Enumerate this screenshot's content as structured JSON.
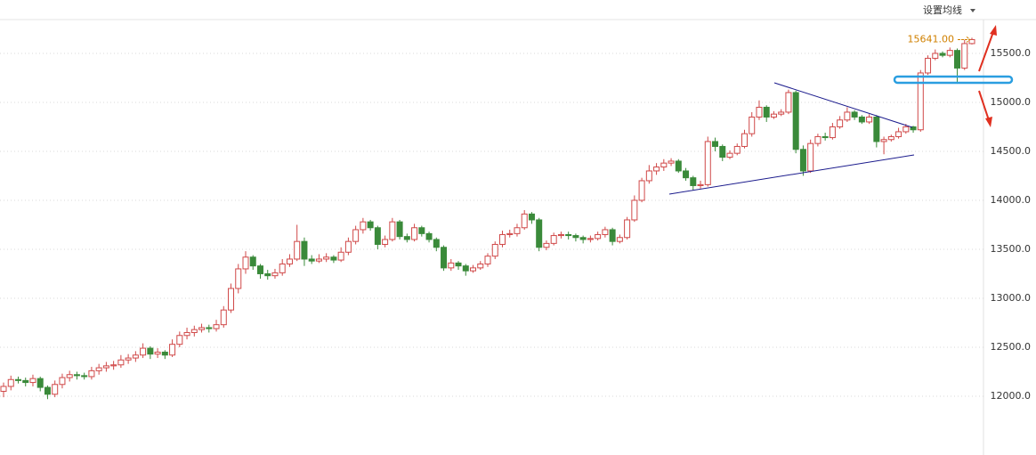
{
  "chart_data": {
    "type": "candlestick",
    "button": "设置均线",
    "ylim": [
      11427,
      15845
    ],
    "yticks": [
      {
        "value": 12000,
        "label": "12000.0"
      },
      {
        "value": 12500,
        "label": "12500.0"
      },
      {
        "value": 13000,
        "label": "13000.0"
      },
      {
        "value": 13500,
        "label": "13500.0"
      },
      {
        "value": 14000,
        "label": "14000.0"
      },
      {
        "value": 14500,
        "label": "14500.0"
      },
      {
        "value": 15000,
        "label": "15000.0"
      },
      {
        "value": 15500,
        "label": "15500.0"
      }
    ],
    "grid": true,
    "annotation": {
      "value": 15641,
      "label": "15641.00",
      "color": "#d08000"
    },
    "series": [
      {
        "up_color": "#d04848",
        "down_color": "#3a8a3a",
        "values": [
          [
            12050,
            12140,
            11990,
            12100
          ],
          [
            12100,
            12210,
            12060,
            12170
          ],
          [
            12170,
            12200,
            12130,
            12160
          ],
          [
            12160,
            12190,
            12100,
            12140
          ],
          [
            12140,
            12220,
            12100,
            12180
          ],
          [
            12180,
            12200,
            12050,
            12090
          ],
          [
            12090,
            12110,
            11970,
            12020
          ],
          [
            12020,
            12160,
            11990,
            12120
          ],
          [
            12120,
            12230,
            12080,
            12190
          ],
          [
            12190,
            12260,
            12150,
            12220
          ],
          [
            12220,
            12250,
            12170,
            12210
          ],
          [
            12210,
            12240,
            12170,
            12200
          ],
          [
            12200,
            12300,
            12170,
            12260
          ],
          [
            12260,
            12330,
            12220,
            12290
          ],
          [
            12290,
            12350,
            12250,
            12310
          ],
          [
            12310,
            12360,
            12270,
            12320
          ],
          [
            12320,
            12420,
            12290,
            12370
          ],
          [
            12370,
            12430,
            12330,
            12390
          ],
          [
            12390,
            12460,
            12350,
            12420
          ],
          [
            12420,
            12540,
            12390,
            12490
          ],
          [
            12490,
            12510,
            12380,
            12430
          ],
          [
            12430,
            12490,
            12390,
            12450
          ],
          [
            12450,
            12470,
            12380,
            12420
          ],
          [
            12420,
            12580,
            12400,
            12530
          ],
          [
            12530,
            12660,
            12500,
            12620
          ],
          [
            12620,
            12700,
            12580,
            12650
          ],
          [
            12650,
            12720,
            12610,
            12680
          ],
          [
            12680,
            12740,
            12650,
            12700
          ],
          [
            12700,
            12730,
            12650,
            12690
          ],
          [
            12690,
            12780,
            12660,
            12730
          ],
          [
            12730,
            12920,
            12700,
            12880
          ],
          [
            12880,
            13150,
            12850,
            13100
          ],
          [
            13100,
            13350,
            13050,
            13300
          ],
          [
            13300,
            13480,
            13250,
            13420
          ],
          [
            13420,
            13440,
            13290,
            13330
          ],
          [
            13330,
            13350,
            13200,
            13250
          ],
          [
            13250,
            13290,
            13190,
            13230
          ],
          [
            13230,
            13300,
            13200,
            13260
          ],
          [
            13260,
            13400,
            13230,
            13350
          ],
          [
            13350,
            13450,
            13320,
            13400
          ],
          [
            13400,
            13750,
            13380,
            13580
          ],
          [
            13580,
            13620,
            13330,
            13400
          ],
          [
            13400,
            13440,
            13350,
            13380
          ],
          [
            13380,
            13450,
            13360,
            13400
          ],
          [
            13400,
            13460,
            13370,
            13420
          ],
          [
            13420,
            13440,
            13360,
            13390
          ],
          [
            13390,
            13520,
            13370,
            13470
          ],
          [
            13470,
            13620,
            13440,
            13580
          ],
          [
            13580,
            13740,
            13550,
            13700
          ],
          [
            13700,
            13820,
            13660,
            13780
          ],
          [
            13780,
            13800,
            13690,
            13720
          ],
          [
            13720,
            13740,
            13500,
            13550
          ],
          [
            13550,
            13640,
            13520,
            13600
          ],
          [
            13600,
            13820,
            13580,
            13780
          ],
          [
            13780,
            13800,
            13600,
            13630
          ],
          [
            13630,
            13660,
            13570,
            13600
          ],
          [
            13600,
            13760,
            13580,
            13720
          ],
          [
            13720,
            13740,
            13630,
            13660
          ],
          [
            13660,
            13680,
            13570,
            13600
          ],
          [
            13600,
            13620,
            13480,
            13520
          ],
          [
            13520,
            13540,
            13280,
            13310
          ],
          [
            13310,
            13400,
            13280,
            13360
          ],
          [
            13360,
            13380,
            13290,
            13330
          ],
          [
            13330,
            13350,
            13230,
            13280
          ],
          [
            13280,
            13340,
            13260,
            13310
          ],
          [
            13310,
            13380,
            13290,
            13350
          ],
          [
            13350,
            13460,
            13320,
            13430
          ],
          [
            13430,
            13580,
            13400,
            13550
          ],
          [
            13550,
            13690,
            13520,
            13650
          ],
          [
            13650,
            13700,
            13620,
            13660
          ],
          [
            13660,
            13760,
            13630,
            13720
          ],
          [
            13720,
            13900,
            13700,
            13860
          ],
          [
            13860,
            13880,
            13760,
            13800
          ],
          [
            13800,
            13820,
            13480,
            13520
          ],
          [
            13520,
            13590,
            13490,
            13560
          ],
          [
            13560,
            13670,
            13540,
            13640
          ],
          [
            13640,
            13680,
            13610,
            13650
          ],
          [
            13650,
            13680,
            13600,
            13640
          ],
          [
            13640,
            13660,
            13580,
            13620
          ],
          [
            13620,
            13640,
            13560,
            13600
          ],
          [
            13600,
            13640,
            13570,
            13610
          ],
          [
            13610,
            13680,
            13590,
            13650
          ],
          [
            13650,
            13730,
            13620,
            13700
          ],
          [
            13700,
            13720,
            13540,
            13580
          ],
          [
            13580,
            13650,
            13560,
            13620
          ],
          [
            13620,
            13830,
            13600,
            13800
          ],
          [
            13800,
            14050,
            13780,
            14000
          ],
          [
            14000,
            14230,
            13980,
            14200
          ],
          [
            14200,
            14360,
            14170,
            14300
          ],
          [
            14300,
            14380,
            14260,
            14340
          ],
          [
            14340,
            14420,
            14300,
            14380
          ],
          [
            14380,
            14430,
            14350,
            14400
          ],
          [
            14400,
            14420,
            14280,
            14300
          ],
          [
            14300,
            14330,
            14200,
            14230
          ],
          [
            14230,
            14250,
            14100,
            14150
          ],
          [
            14150,
            14200,
            14120,
            14160
          ],
          [
            14160,
            14650,
            14140,
            14600
          ],
          [
            14600,
            14640,
            14500,
            14550
          ],
          [
            14550,
            14570,
            14400,
            14440
          ],
          [
            14440,
            14510,
            14420,
            14480
          ],
          [
            14480,
            14580,
            14460,
            14550
          ],
          [
            14550,
            14720,
            14530,
            14680
          ],
          [
            14680,
            14900,
            14650,
            14850
          ],
          [
            14850,
            15020,
            14820,
            14950
          ],
          [
            14950,
            14970,
            14800,
            14850
          ],
          [
            14850,
            14910,
            14830,
            14880
          ],
          [
            14880,
            14930,
            14860,
            14900
          ],
          [
            14900,
            15130,
            14880,
            15100
          ],
          [
            15100,
            15120,
            14480,
            14520
          ],
          [
            14520,
            14560,
            14250,
            14300
          ],
          [
            14300,
            14620,
            14280,
            14580
          ],
          [
            14580,
            14680,
            14550,
            14650
          ],
          [
            14650,
            14690,
            14610,
            14640
          ],
          [
            14640,
            14790,
            14620,
            14750
          ],
          [
            14750,
            14860,
            14730,
            14820
          ],
          [
            14820,
            14950,
            14800,
            14900
          ],
          [
            14900,
            14920,
            14820,
            14850
          ],
          [
            14850,
            14870,
            14780,
            14800
          ],
          [
            14800,
            14880,
            14780,
            14850
          ],
          [
            14850,
            14870,
            14540,
            14600
          ],
          [
            14600,
            14650,
            14470,
            14620
          ],
          [
            14620,
            14670,
            14600,
            14650
          ],
          [
            14650,
            14740,
            14630,
            14700
          ],
          [
            14700,
            14780,
            14680,
            14750
          ],
          [
            14750,
            14760,
            14690,
            14720
          ],
          [
            14720,
            15330,
            14700,
            15300
          ],
          [
            15300,
            15480,
            15280,
            15450
          ],
          [
            15450,
            15540,
            15430,
            15500
          ],
          [
            15500,
            15520,
            15460,
            15480
          ],
          [
            15480,
            15560,
            15460,
            15530
          ],
          [
            15530,
            15550,
            15190,
            15350
          ],
          [
            15350,
            15640,
            15330,
            15600
          ],
          [
            15600,
            15660,
            15590,
            15641
          ]
        ]
      }
    ]
  }
}
